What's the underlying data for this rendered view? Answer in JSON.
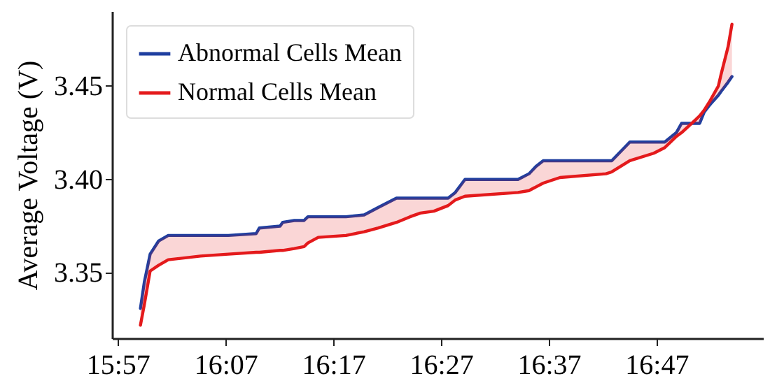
{
  "chart_data": {
    "type": "line",
    "ylabel": "Average Voltage (V)",
    "x": [
      15.985,
      15.991,
      16.0,
      16.013,
      16.028,
      16.078,
      16.121,
      16.164,
      16.169,
      16.201,
      16.205,
      16.223,
      16.238,
      16.244,
      16.26,
      16.303,
      16.331,
      16.353,
      16.381,
      16.402,
      16.418,
      16.439,
      16.461,
      16.472,
      16.487,
      16.569,
      16.586,
      16.597,
      16.608,
      16.634,
      16.705,
      16.714,
      16.742,
      16.779,
      16.796,
      16.814,
      16.822,
      16.844,
      16.85,
      16.857,
      16.866,
      16.879,
      16.883,
      16.894,
      16.9
    ],
    "series": [
      {
        "name": "Abnormal Cells Mean",
        "color": "#1f3fa0",
        "values": [
          3.331,
          3.345,
          3.36,
          3.367,
          3.37,
          3.37,
          3.37,
          3.371,
          3.374,
          3.375,
          3.377,
          3.378,
          3.378,
          3.38,
          3.38,
          3.38,
          3.381,
          3.385,
          3.39,
          3.39,
          3.39,
          3.39,
          3.39,
          3.393,
          3.4,
          3.4,
          3.403,
          3.407,
          3.41,
          3.41,
          3.41,
          3.41,
          3.42,
          3.42,
          3.42,
          3.425,
          3.43,
          3.43,
          3.43,
          3.436,
          3.44,
          3.445,
          3.447,
          3.452,
          3.455
        ]
      },
      {
        "name": "Normal Cells Mean",
        "color": "#e41a1c",
        "values": [
          3.322,
          3.333,
          3.351,
          3.354,
          3.357,
          3.359,
          3.36,
          3.361,
          3.361,
          3.362,
          3.362,
          3.363,
          3.364,
          3.366,
          3.369,
          3.37,
          3.372,
          3.374,
          3.377,
          3.38,
          3.382,
          3.383,
          3.386,
          3.389,
          3.391,
          3.393,
          3.394,
          3.396,
          3.398,
          3.401,
          3.403,
          3.404,
          3.41,
          3.414,
          3.417,
          3.423,
          3.425,
          3.432,
          3.434,
          3.437,
          3.442,
          3.45,
          3.456,
          3.471,
          3.483
        ],
        "lower": [
          3.322,
          3.333,
          3.351,
          3.354,
          3.357,
          3.359,
          3.36,
          3.361,
          3.361,
          3.362,
          3.362,
          3.363,
          3.364,
          3.366,
          3.369,
          3.37,
          3.372,
          3.374,
          3.377,
          3.38,
          3.382,
          3.383,
          3.386,
          3.389,
          3.391,
          3.393,
          3.394,
          3.396,
          3.398,
          3.401,
          3.403,
          3.404,
          3.41,
          3.414,
          3.417,
          3.423,
          3.425,
          3.432,
          3.434,
          3.437,
          3.442,
          3.45,
          3.456,
          3.471,
          3.483
        ],
        "upper": [
          3.331,
          3.345,
          3.36,
          3.367,
          3.37,
          3.37,
          3.37,
          3.371,
          3.374,
          3.375,
          3.377,
          3.378,
          3.378,
          3.38,
          3.38,
          3.38,
          3.381,
          3.385,
          3.39,
          3.39,
          3.39,
          3.39,
          3.39,
          3.393,
          3.4,
          3.4,
          3.403,
          3.407,
          3.41,
          3.41,
          3.41,
          3.41,
          3.42,
          3.42,
          3.42,
          3.425,
          3.43,
          3.43,
          3.43,
          3.436,
          3.44,
          3.445,
          3.447,
          3.452,
          3.455
        ]
      }
    ],
    "xlim": [
      15.941,
      16.948
    ],
    "xticks": [
      {
        "value": 15.95,
        "label": "15:57"
      },
      {
        "value": 16.1167,
        "label": "16:07"
      },
      {
        "value": 16.2833,
        "label": "16:17"
      },
      {
        "value": 16.45,
        "label": "16:27"
      },
      {
        "value": 16.6167,
        "label": "16:37"
      },
      {
        "value": 16.7833,
        "label": "16:47"
      }
    ],
    "ylim": [
      3.315,
      3.49
    ],
    "yticks": [
      3.35,
      {
        "value": 3.4,
        "label": "3.40"
      },
      3.45
    ],
    "grid": false,
    "legend": "top left",
    "marker": "none",
    "line_style": "solid"
  }
}
